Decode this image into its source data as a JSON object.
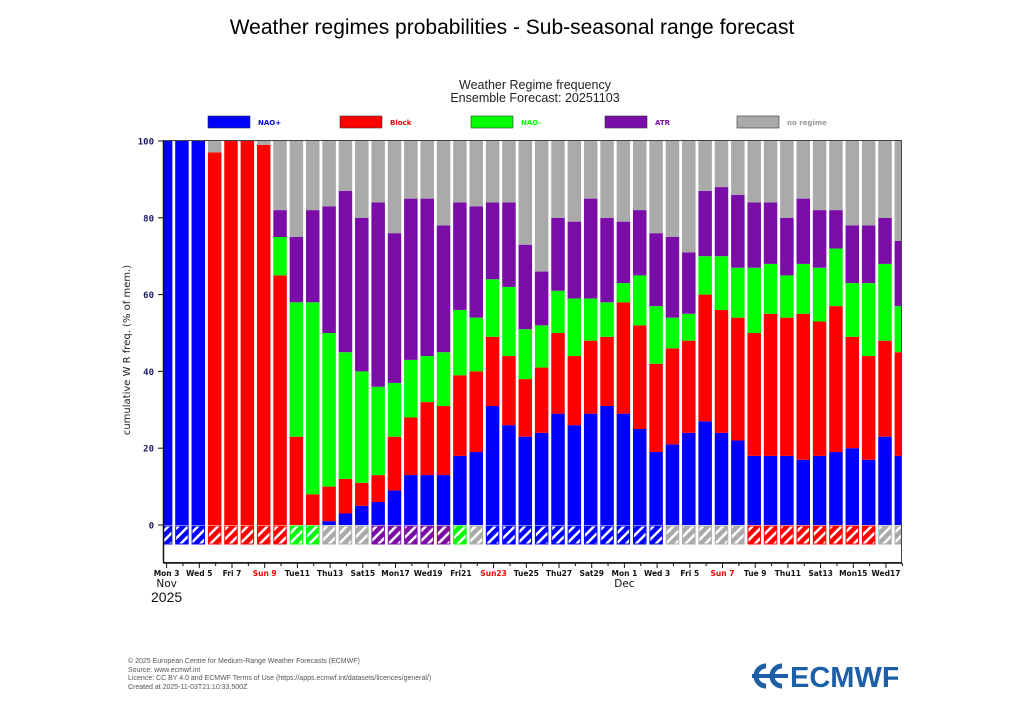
{
  "page_title": "Weather regimes probabilities - Sub-seasonal range forecast",
  "chart_data": {
    "type": "bar",
    "stacked": true,
    "title": "Weather Regime frequency",
    "subtitle": "Ensemble Forecast: 20251103",
    "ylabel": "cumulative W R freq. (% of mem.)",
    "xlabel": "",
    "ylim": [
      -10,
      100
    ],
    "yticks": [
      0,
      20,
      40,
      60,
      80,
      100
    ],
    "grid": false,
    "legend_position": "top",
    "dates": [
      "2025-11-03",
      "2025-11-04",
      "2025-11-05",
      "2025-11-06",
      "2025-11-07",
      "2025-11-08",
      "2025-11-09",
      "2025-11-10",
      "2025-11-11",
      "2025-11-12",
      "2025-11-13",
      "2025-11-14",
      "2025-11-15",
      "2025-11-16",
      "2025-11-17",
      "2025-11-18",
      "2025-11-19",
      "2025-11-20",
      "2025-11-21",
      "2025-11-22",
      "2025-11-23",
      "2025-11-24",
      "2025-11-25",
      "2025-11-26",
      "2025-11-27",
      "2025-11-28",
      "2025-11-29",
      "2025-11-30",
      "2025-12-01",
      "2025-12-02",
      "2025-12-03",
      "2025-12-04",
      "2025-12-05",
      "2025-12-06",
      "2025-12-07",
      "2025-12-08",
      "2025-12-09",
      "2025-12-10",
      "2025-12-11",
      "2025-12-12",
      "2025-12-13",
      "2025-12-14",
      "2025-12-15",
      "2025-12-16",
      "2025-12-17",
      "2025-12-18"
    ],
    "series": [
      {
        "name": "NAO+",
        "color": "#0000ff",
        "values": [
          100,
          100,
          100,
          0,
          0,
          0,
          0,
          0,
          0,
          0,
          1,
          3,
          5,
          6,
          9,
          13,
          13,
          13,
          18,
          19,
          31,
          26,
          23,
          24,
          29,
          26,
          29,
          31,
          29,
          25,
          19,
          21,
          24,
          27,
          24,
          22,
          18,
          18,
          18,
          17,
          18,
          19,
          20,
          17,
          23,
          18
        ]
      },
      {
        "name": "Block",
        "color": "#ff0000",
        "values": [
          0,
          0,
          0,
          97,
          100,
          100,
          99,
          65,
          23,
          8,
          9,
          9,
          6,
          7,
          14,
          15,
          19,
          18,
          21,
          21,
          18,
          18,
          15,
          17,
          21,
          18,
          19,
          18,
          29,
          27,
          23,
          25,
          24,
          33,
          32,
          32,
          32,
          37,
          36,
          38,
          35,
          38,
          29,
          27,
          25,
          27
        ]
      },
      {
        "name": "NAO-",
        "color": "#00ff00",
        "values": [
          0,
          0,
          0,
          0,
          0,
          0,
          0,
          10,
          35,
          50,
          40,
          33,
          29,
          23,
          14,
          15,
          12,
          14,
          17,
          14,
          15,
          18,
          13,
          11,
          11,
          15,
          11,
          9,
          5,
          13,
          15,
          8,
          7,
          10,
          14,
          13,
          17,
          13,
          11,
          13,
          14,
          15,
          14,
          19,
          20,
          12
        ]
      },
      {
        "name": "ATR",
        "color": "#7a0da8",
        "values": [
          0,
          0,
          0,
          0,
          0,
          0,
          0,
          7,
          17,
          24,
          33,
          42,
          40,
          48,
          39,
          42,
          41,
          33,
          28,
          29,
          20,
          22,
          22,
          14,
          19,
          20,
          26,
          22,
          16,
          17,
          19,
          21,
          16,
          17,
          18,
          19,
          17,
          16,
          15,
          17,
          15,
          10,
          15,
          15,
          12,
          17
        ]
      },
      {
        "name": "no regime",
        "color": "#aaaaaa",
        "values": [
          0,
          0,
          0,
          3,
          0,
          0,
          1,
          18,
          25,
          18,
          17,
          13,
          20,
          16,
          24,
          15,
          15,
          22,
          16,
          17,
          16,
          16,
          27,
          34,
          20,
          21,
          15,
          20,
          21,
          18,
          24,
          25,
          29,
          13,
          12,
          14,
          16,
          16,
          20,
          15,
          18,
          18,
          22,
          22,
          20,
          26
        ]
      }
    ],
    "dominant_regime": [
      "NAO+",
      "NAO+",
      "NAO+",
      "Block",
      "Block",
      "Block",
      "Block",
      "Block",
      "NAO-",
      "NAO-",
      "no regime",
      "no regime",
      "no regime",
      "ATR",
      "ATR",
      "ATR",
      "ATR",
      "ATR",
      "NAO-",
      "no regime",
      "NAO+",
      "NAO+",
      "NAO+",
      "NAO+",
      "NAO+",
      "NAO+",
      "NAO+",
      "NAO+",
      "NAO+",
      "NAO+",
      "NAO+",
      "no regime",
      "no regime",
      "no regime",
      "no regime",
      "no regime",
      "Block",
      "Block",
      "Block",
      "Block",
      "Block",
      "Block",
      "Block",
      "Block",
      "no regime",
      "no regime"
    ],
    "xtick_labels": [
      {
        "label": "Mon 3",
        "sunday": false
      },
      {
        "label": "Wed 5",
        "sunday": false
      },
      {
        "label": "Fri 7",
        "sunday": false
      },
      {
        "label": "Sun 9",
        "sunday": true
      },
      {
        "label": "Tue11",
        "sunday": false
      },
      {
        "label": "Thu13",
        "sunday": false
      },
      {
        "label": "Sat15",
        "sunday": false
      },
      {
        "label": "Mon17",
        "sunday": false
      },
      {
        "label": "Wed19",
        "sunday": false
      },
      {
        "label": "Fri21",
        "sunday": false
      },
      {
        "label": "Sun23",
        "sunday": true
      },
      {
        "label": "Tue25",
        "sunday": false
      },
      {
        "label": "Thu27",
        "sunday": false
      },
      {
        "label": "Sat29",
        "sunday": false
      },
      {
        "label": "Mon 1",
        "sunday": false
      },
      {
        "label": "Wed 3",
        "sunday": false
      },
      {
        "label": "Fri 5",
        "sunday": false
      },
      {
        "label": "Sun 7",
        "sunday": true
      },
      {
        "label": "Tue 9",
        "sunday": false
      },
      {
        "label": "Thu11",
        "sunday": false
      },
      {
        "label": "Sat13",
        "sunday": false
      },
      {
        "label": "Mon15",
        "sunday": false
      },
      {
        "label": "Wed17",
        "sunday": false
      }
    ],
    "month_labels": [
      {
        "label": "Nov",
        "day_index": 0
      },
      {
        "label": "Dec",
        "day_index": 28
      }
    ],
    "year_label": "2025",
    "sunday_color": "#ff0000",
    "axis_text_color": "#1a1a66"
  },
  "footer": {
    "lines": [
      "© 2025 European Centre for Medium-Range Weather Forecasts (ECMWF)",
      "Source: www.ecmwf.int",
      "Licence: CC BY 4.0 and ECMWF Terms of Use (https://apps.ecmwf.int/datasets/licences/general/)",
      "Created at 2025-11-03T21:10:33.500Z"
    ]
  },
  "logo": {
    "text": "ECMWF",
    "color": "#1d5fa6"
  }
}
